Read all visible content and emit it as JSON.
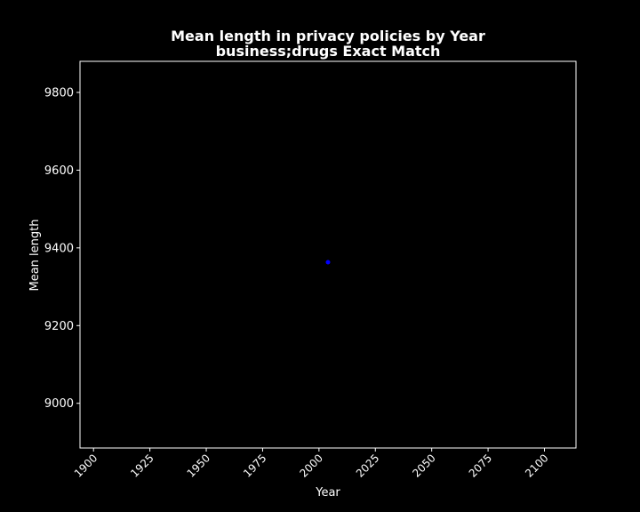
{
  "chart_data": {
    "type": "scatter",
    "title": "Mean length in privacy policies by Year",
    "subtitle": "business;drugs Exact Match",
    "xlabel": "Year",
    "ylabel": "Mean length",
    "xlim": [
      1894,
      2114
    ],
    "ylim": [
      8885,
      9880
    ],
    "xticks": [
      1900,
      1925,
      1950,
      1975,
      2000,
      2025,
      2050,
      2075,
      2100
    ],
    "yticks": [
      9000,
      9200,
      9400,
      9600,
      9800
    ],
    "grid": false,
    "series": [
      {
        "color": "#0000ff",
        "points": [
          {
            "x": 2004,
            "y": 9363
          }
        ]
      }
    ],
    "colors": {
      "background": "#000000",
      "axes": "#ffffff",
      "text": "#ffffff"
    }
  }
}
